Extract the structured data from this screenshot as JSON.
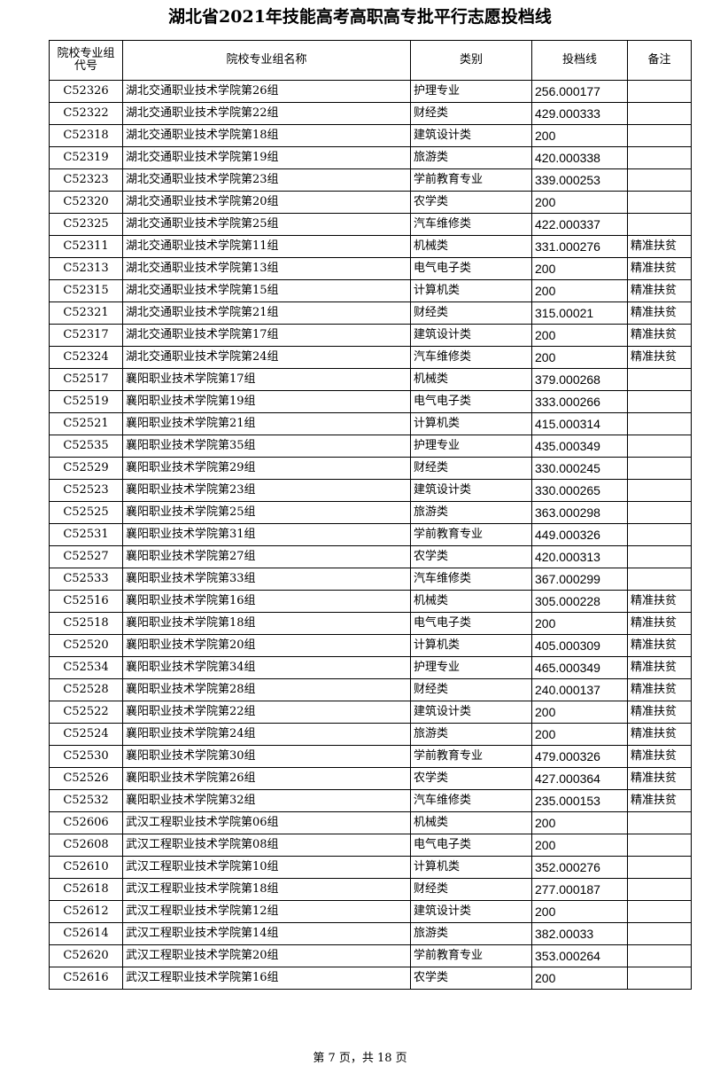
{
  "header": {
    "title": "湖北省2021年技能高考高职高专批平行志愿投档线"
  },
  "table": {
    "columns": [
      "院校专业组代号",
      "院校专业组名称",
      "类别",
      "投档线",
      "备注"
    ],
    "rows": [
      [
        "C52326",
        "湖北交通职业技术学院第26组",
        "护理专业",
        "256.000177",
        ""
      ],
      [
        "C52322",
        "湖北交通职业技术学院第22组",
        "财经类",
        "429.000333",
        ""
      ],
      [
        "C52318",
        "湖北交通职业技术学院第18组",
        "建筑设计类",
        "200",
        ""
      ],
      [
        "C52319",
        "湖北交通职业技术学院第19组",
        "旅游类",
        "420.000338",
        ""
      ],
      [
        "C52323",
        "湖北交通职业技术学院第23组",
        "学前教育专业",
        "339.000253",
        ""
      ],
      [
        "C52320",
        "湖北交通职业技术学院第20组",
        "农学类",
        "200",
        ""
      ],
      [
        "C52325",
        "湖北交通职业技术学院第25组",
        "汽车维修类",
        "422.000337",
        ""
      ],
      [
        "C52311",
        "湖北交通职业技术学院第11组",
        "机械类",
        "331.000276",
        "精准扶贫"
      ],
      [
        "C52313",
        "湖北交通职业技术学院第13组",
        "电气电子类",
        "200",
        "精准扶贫"
      ],
      [
        "C52315",
        "湖北交通职业技术学院第15组",
        "计算机类",
        "200",
        "精准扶贫"
      ],
      [
        "C52321",
        "湖北交通职业技术学院第21组",
        "财经类",
        "315.00021",
        "精准扶贫"
      ],
      [
        "C52317",
        "湖北交通职业技术学院第17组",
        "建筑设计类",
        "200",
        "精准扶贫"
      ],
      [
        "C52324",
        "湖北交通职业技术学院第24组",
        "汽车维修类",
        "200",
        "精准扶贫"
      ],
      [
        "C52517",
        "襄阳职业技术学院第17组",
        "机械类",
        "379.000268",
        ""
      ],
      [
        "C52519",
        "襄阳职业技术学院第19组",
        "电气电子类",
        "333.000266",
        ""
      ],
      [
        "C52521",
        "襄阳职业技术学院第21组",
        "计算机类",
        "415.000314",
        ""
      ],
      [
        "C52535",
        "襄阳职业技术学院第35组",
        "护理专业",
        "435.000349",
        ""
      ],
      [
        "C52529",
        "襄阳职业技术学院第29组",
        "财经类",
        "330.000245",
        ""
      ],
      [
        "C52523",
        "襄阳职业技术学院第23组",
        "建筑设计类",
        "330.000265",
        ""
      ],
      [
        "C52525",
        "襄阳职业技术学院第25组",
        "旅游类",
        "363.000298",
        ""
      ],
      [
        "C52531",
        "襄阳职业技术学院第31组",
        "学前教育专业",
        "449.000326",
        ""
      ],
      [
        "C52527",
        "襄阳职业技术学院第27组",
        "农学类",
        "420.000313",
        ""
      ],
      [
        "C52533",
        "襄阳职业技术学院第33组",
        "汽车维修类",
        "367.000299",
        ""
      ],
      [
        "C52516",
        "襄阳职业技术学院第16组",
        "机械类",
        "305.000228",
        "精准扶贫"
      ],
      [
        "C52518",
        "襄阳职业技术学院第18组",
        "电气电子类",
        "200",
        "精准扶贫"
      ],
      [
        "C52520",
        "襄阳职业技术学院第20组",
        "计算机类",
        "405.000309",
        "精准扶贫"
      ],
      [
        "C52534",
        "襄阳职业技术学院第34组",
        "护理专业",
        "465.000349",
        "精准扶贫"
      ],
      [
        "C52528",
        "襄阳职业技术学院第28组",
        "财经类",
        "240.000137",
        "精准扶贫"
      ],
      [
        "C52522",
        "襄阳职业技术学院第22组",
        "建筑设计类",
        "200",
        "精准扶贫"
      ],
      [
        "C52524",
        "襄阳职业技术学院第24组",
        "旅游类",
        "200",
        "精准扶贫"
      ],
      [
        "C52530",
        "襄阳职业技术学院第30组",
        "学前教育专业",
        "479.000326",
        "精准扶贫"
      ],
      [
        "C52526",
        "襄阳职业技术学院第26组",
        "农学类",
        "427.000364",
        "精准扶贫"
      ],
      [
        "C52532",
        "襄阳职业技术学院第32组",
        "汽车维修类",
        "235.000153",
        "精准扶贫"
      ],
      [
        "C52606",
        "武汉工程职业技术学院第06组",
        "机械类",
        "200",
        ""
      ],
      [
        "C52608",
        "武汉工程职业技术学院第08组",
        "电气电子类",
        "200",
        ""
      ],
      [
        "C52610",
        "武汉工程职业技术学院第10组",
        "计算机类",
        "352.000276",
        ""
      ],
      [
        "C52618",
        "武汉工程职业技术学院第18组",
        "财经类",
        "277.000187",
        ""
      ],
      [
        "C52612",
        "武汉工程职业技术学院第12组",
        "建筑设计类",
        "200",
        ""
      ],
      [
        "C52614",
        "武汉工程职业技术学院第14组",
        "旅游类",
        "382.00033",
        ""
      ],
      [
        "C52620",
        "武汉工程职业技术学院第20组",
        "学前教育专业",
        "353.000264",
        ""
      ],
      [
        "C52616",
        "武汉工程职业技术学院第16组",
        "农学类",
        "200",
        ""
      ]
    ]
  },
  "footer": {
    "page": "第 7 页，共 18 页"
  }
}
